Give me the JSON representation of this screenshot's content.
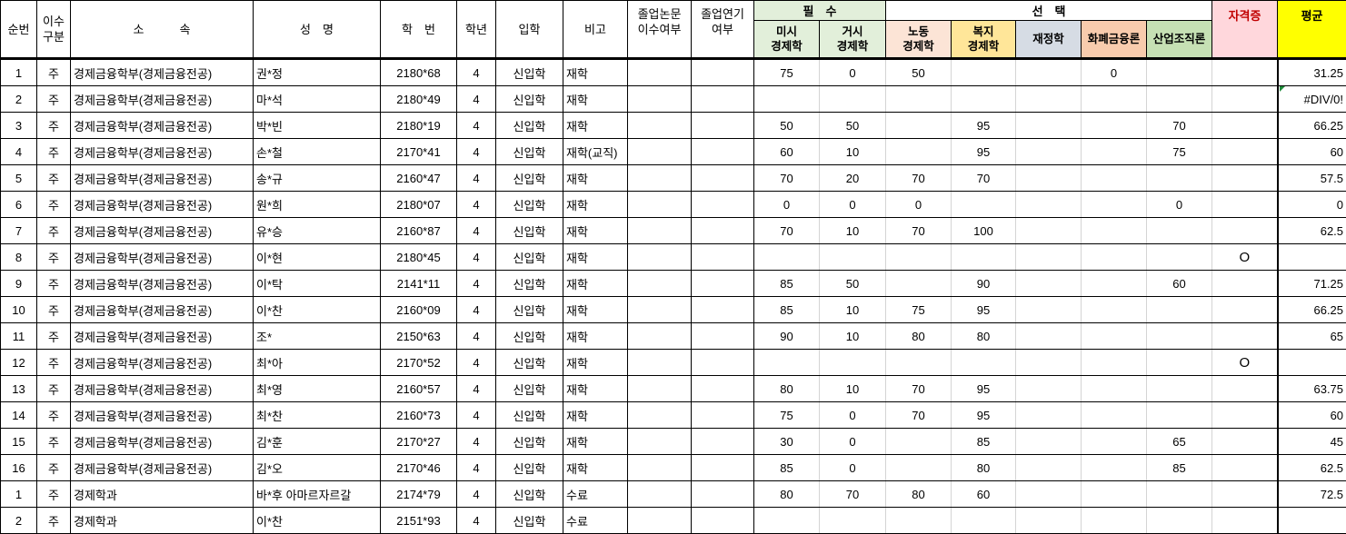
{
  "headers": {
    "no": "순번",
    "type": "이수\n구분",
    "dept": "소　　　속",
    "name": "성　명",
    "id": "학　번",
    "year": "학년",
    "admit": "입학",
    "note": "비고",
    "thesis": "졸업논문\n이수여부",
    "delay": "졸업연기\n여부",
    "required": "필　수",
    "elective": "선　택",
    "micro": "미시\n경제학",
    "macro": "거시\n경제학",
    "labor": "노동\n경제학",
    "welfare": "복지\n경제학",
    "finance": "재정학",
    "money": "화폐금융론",
    "industry": "산업조직론",
    "cert": "자격증",
    "avg": "평균"
  },
  "colors": {
    "required": "#e2efda",
    "labor": "#fce4d6",
    "welfare": "#ffe699",
    "finance": "#d6dce4",
    "money": "#f8cbad",
    "industry": "#c6e0b4",
    "cert": "#ffd7dc",
    "avg": "#ffff00"
  },
  "rows": [
    {
      "no": "1",
      "type": "주",
      "dept": "경제금융학부(경제금융전공)",
      "name": "권*정",
      "id": "2180*68",
      "year": "4",
      "admit": "신입학",
      "note": "재학",
      "thesis": "",
      "delay": "",
      "micro": "75",
      "macro": "0",
      "labor": "50",
      "welfare": "",
      "finance": "",
      "money": "0",
      "industry": "",
      "cert": "",
      "avg": "31.25"
    },
    {
      "no": "2",
      "type": "주",
      "dept": "경제금융학부(경제금융전공)",
      "name": "마*석",
      "id": "2180*49",
      "year": "4",
      "admit": "신입학",
      "note": "재학",
      "thesis": "",
      "delay": "",
      "micro": "",
      "macro": "",
      "labor": "",
      "welfare": "",
      "finance": "",
      "money": "",
      "industry": "",
      "cert": "",
      "avg": "#DIV/0!",
      "error": true
    },
    {
      "no": "3",
      "type": "주",
      "dept": "경제금융학부(경제금융전공)",
      "name": "박*빈",
      "id": "2180*19",
      "year": "4",
      "admit": "신입학",
      "note": "재학",
      "thesis": "",
      "delay": "",
      "micro": "50",
      "macro": "50",
      "labor": "",
      "welfare": "95",
      "finance": "",
      "money": "",
      "industry": "70",
      "cert": "",
      "avg": "66.25"
    },
    {
      "no": "4",
      "type": "주",
      "dept": "경제금융학부(경제금융전공)",
      "name": "손*철",
      "id": "2170*41",
      "year": "4",
      "admit": "신입학",
      "note": "재학(교직)",
      "thesis": "",
      "delay": "",
      "micro": "60",
      "macro": "10",
      "labor": "",
      "welfare": "95",
      "finance": "",
      "money": "",
      "industry": "75",
      "cert": "",
      "avg": "60"
    },
    {
      "no": "5",
      "type": "주",
      "dept": "경제금융학부(경제금융전공)",
      "name": "송*규",
      "id": "2160*47",
      "year": "4",
      "admit": "신입학",
      "note": "재학",
      "thesis": "",
      "delay": "",
      "micro": "70",
      "macro": "20",
      "labor": "70",
      "welfare": "70",
      "finance": "",
      "money": "",
      "industry": "",
      "cert": "",
      "avg": "57.5"
    },
    {
      "no": "6",
      "type": "주",
      "dept": "경제금융학부(경제금융전공)",
      "name": "원*희",
      "id": "2180*07",
      "year": "4",
      "admit": "신입학",
      "note": "재학",
      "thesis": "",
      "delay": "",
      "micro": "0",
      "macro": "0",
      "labor": "0",
      "welfare": "",
      "finance": "",
      "money": "",
      "industry": "0",
      "cert": "",
      "avg": "0"
    },
    {
      "no": "7",
      "type": "주",
      "dept": "경제금융학부(경제금융전공)",
      "name": "유*승",
      "id": "2160*87",
      "year": "4",
      "admit": "신입학",
      "note": "재학",
      "thesis": "",
      "delay": "",
      "micro": "70",
      "macro": "10",
      "labor": "70",
      "welfare": "100",
      "finance": "",
      "money": "",
      "industry": "",
      "cert": "",
      "avg": "62.5"
    },
    {
      "no": "8",
      "type": "주",
      "dept": "경제금융학부(경제금융전공)",
      "name": "이*현",
      "id": "2180*45",
      "year": "4",
      "admit": "신입학",
      "note": "재학",
      "thesis": "",
      "delay": "",
      "micro": "",
      "macro": "",
      "labor": "",
      "welfare": "",
      "finance": "",
      "money": "",
      "industry": "",
      "cert": "O",
      "avg": ""
    },
    {
      "no": "9",
      "type": "주",
      "dept": "경제금융학부(경제금융전공)",
      "name": "이*탁",
      "id": "2141*11",
      "year": "4",
      "admit": "신입학",
      "note": "재학",
      "thesis": "",
      "delay": "",
      "micro": "85",
      "macro": "50",
      "labor": "",
      "welfare": "90",
      "finance": "",
      "money": "",
      "industry": "60",
      "cert": "",
      "avg": "71.25"
    },
    {
      "no": "10",
      "type": "주",
      "dept": "경제금융학부(경제금융전공)",
      "name": "이*찬",
      "id": "2160*09",
      "year": "4",
      "admit": "신입학",
      "note": "재학",
      "thesis": "",
      "delay": "",
      "micro": "85",
      "macro": "10",
      "labor": "75",
      "welfare": "95",
      "finance": "",
      "money": "",
      "industry": "",
      "cert": "",
      "avg": "66.25"
    },
    {
      "no": "11",
      "type": "주",
      "dept": "경제금융학부(경제금융전공)",
      "name": "조*",
      "id": "2150*63",
      "year": "4",
      "admit": "신입학",
      "note": "재학",
      "thesis": "",
      "delay": "",
      "micro": "90",
      "macro": "10",
      "labor": "80",
      "welfare": "80",
      "finance": "",
      "money": "",
      "industry": "",
      "cert": "",
      "avg": "65"
    },
    {
      "no": "12",
      "type": "주",
      "dept": "경제금융학부(경제금융전공)",
      "name": "최*아",
      "id": "2170*52",
      "year": "4",
      "admit": "신입학",
      "note": "재학",
      "thesis": "",
      "delay": "",
      "micro": "",
      "macro": "",
      "labor": "",
      "welfare": "",
      "finance": "",
      "money": "",
      "industry": "",
      "cert": "O",
      "avg": ""
    },
    {
      "no": "13",
      "type": "주",
      "dept": "경제금융학부(경제금융전공)",
      "name": "최*영",
      "id": "2160*57",
      "year": "4",
      "admit": "신입학",
      "note": "재학",
      "thesis": "",
      "delay": "",
      "micro": "80",
      "macro": "10",
      "labor": "70",
      "welfare": "95",
      "finance": "",
      "money": "",
      "industry": "",
      "cert": "",
      "avg": "63.75"
    },
    {
      "no": "14",
      "type": "주",
      "dept": "경제금융학부(경제금융전공)",
      "name": "최*찬",
      "id": "2160*73",
      "year": "4",
      "admit": "신입학",
      "note": "재학",
      "thesis": "",
      "delay": "",
      "micro": "75",
      "macro": "0",
      "labor": "70",
      "welfare": "95",
      "finance": "",
      "money": "",
      "industry": "",
      "cert": "",
      "avg": "60"
    },
    {
      "no": "15",
      "type": "주",
      "dept": "경제금융학부(경제금융전공)",
      "name": "김*훈",
      "id": "2170*27",
      "year": "4",
      "admit": "신입학",
      "note": "재학",
      "thesis": "",
      "delay": "",
      "micro": "30",
      "macro": "0",
      "labor": "",
      "welfare": "85",
      "finance": "",
      "money": "",
      "industry": "65",
      "cert": "",
      "avg": "45"
    },
    {
      "no": "16",
      "type": "주",
      "dept": "경제금융학부(경제금융전공)",
      "name": "김*오",
      "id": "2170*46",
      "year": "4",
      "admit": "신입학",
      "note": "재학",
      "thesis": "",
      "delay": "",
      "micro": "85",
      "macro": "0",
      "labor": "",
      "welfare": "80",
      "finance": "",
      "money": "",
      "industry": "85",
      "cert": "",
      "avg": "62.5"
    },
    {
      "no": "1",
      "type": "주",
      "dept": "경제학과",
      "name": "바*후 아마르자르갈",
      "id": "2174*79",
      "year": "4",
      "admit": "신입학",
      "note": "수료",
      "thesis": "",
      "delay": "",
      "micro": "80",
      "macro": "70",
      "labor": "80",
      "welfare": "60",
      "finance": "",
      "money": "",
      "industry": "",
      "cert": "",
      "avg": "72.5"
    },
    {
      "no": "2",
      "type": "주",
      "dept": "경제학과",
      "name": "이*찬",
      "id": "2151*93",
      "year": "4",
      "admit": "신입학",
      "note": "수료",
      "thesis": "",
      "delay": "",
      "micro": "",
      "macro": "",
      "labor": "",
      "welfare": "",
      "finance": "",
      "money": "",
      "industry": "",
      "cert": "",
      "avg": ""
    }
  ]
}
